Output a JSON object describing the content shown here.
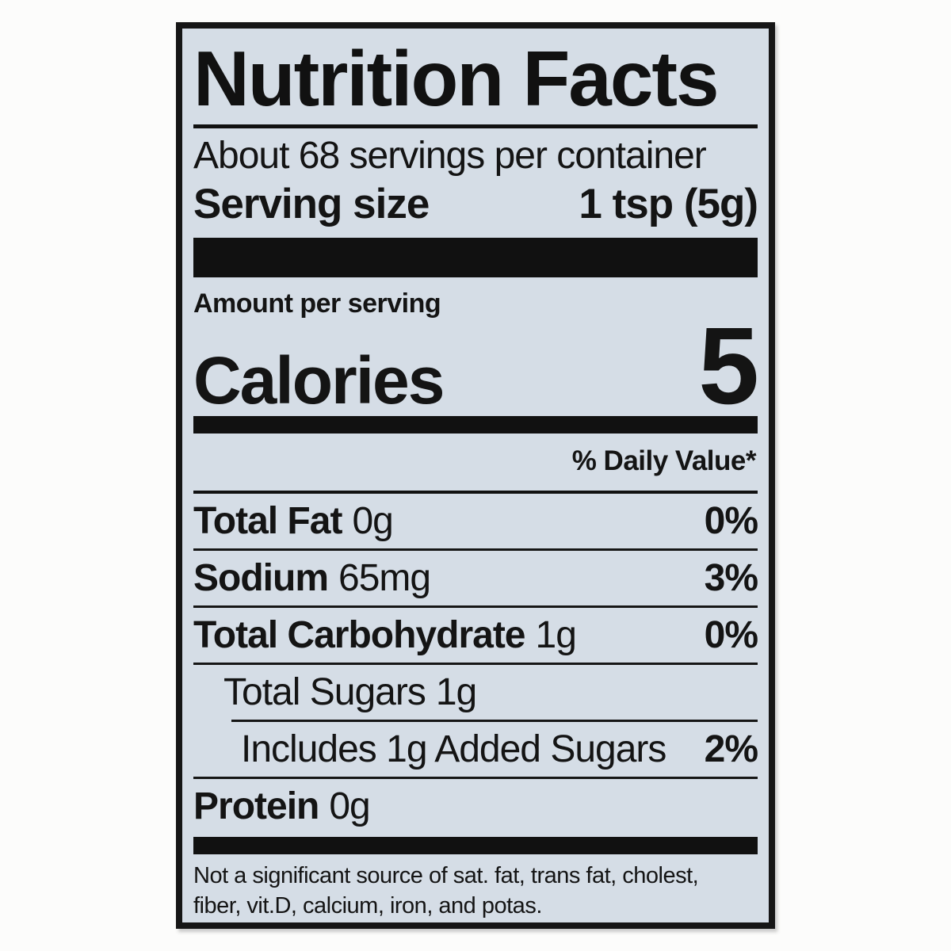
{
  "page": {
    "background": "#fcfcfb"
  },
  "label": {
    "background": "#d5dde6",
    "border_color": "#161616",
    "title": "Nutrition Facts",
    "servings_per_container": "About 68 servings per container",
    "serving_size": {
      "label": "Serving size",
      "value": "1 tsp (5g)"
    },
    "amount_per_serving": "Amount per serving",
    "calories": {
      "label": "Calories",
      "value": "5"
    },
    "daily_value_header": "% Daily Value*",
    "rows": [
      {
        "name": "Total Fat",
        "amount": "0g",
        "dv": "0%",
        "bold": true,
        "indent": 0,
        "separator_above": "none"
      },
      {
        "name": "Sodium",
        "amount": "65mg",
        "dv": "3%",
        "bold": true,
        "indent": 0,
        "separator_above": "full"
      },
      {
        "name": "Total Carbohydrate",
        "amount": "1g",
        "dv": "0%",
        "bold": true,
        "indent": 0,
        "separator_above": "full"
      },
      {
        "name": "Total Sugars",
        "amount": "1g",
        "dv": "",
        "bold": false,
        "indent": 1,
        "separator_above": "full"
      },
      {
        "name": "Includes 1g Added Sugars",
        "amount": "",
        "dv": "2%",
        "bold": false,
        "indent": 2,
        "separator_above": "indent"
      },
      {
        "name": "Protein",
        "amount": "0g",
        "dv": "",
        "bold": true,
        "indent": 0,
        "separator_above": "full"
      }
    ],
    "footnote_lines": [
      "Not a significant source of sat. fat, trans fat, cholest,",
      "fiber, vit.D, calcium, iron, and potas."
    ]
  }
}
